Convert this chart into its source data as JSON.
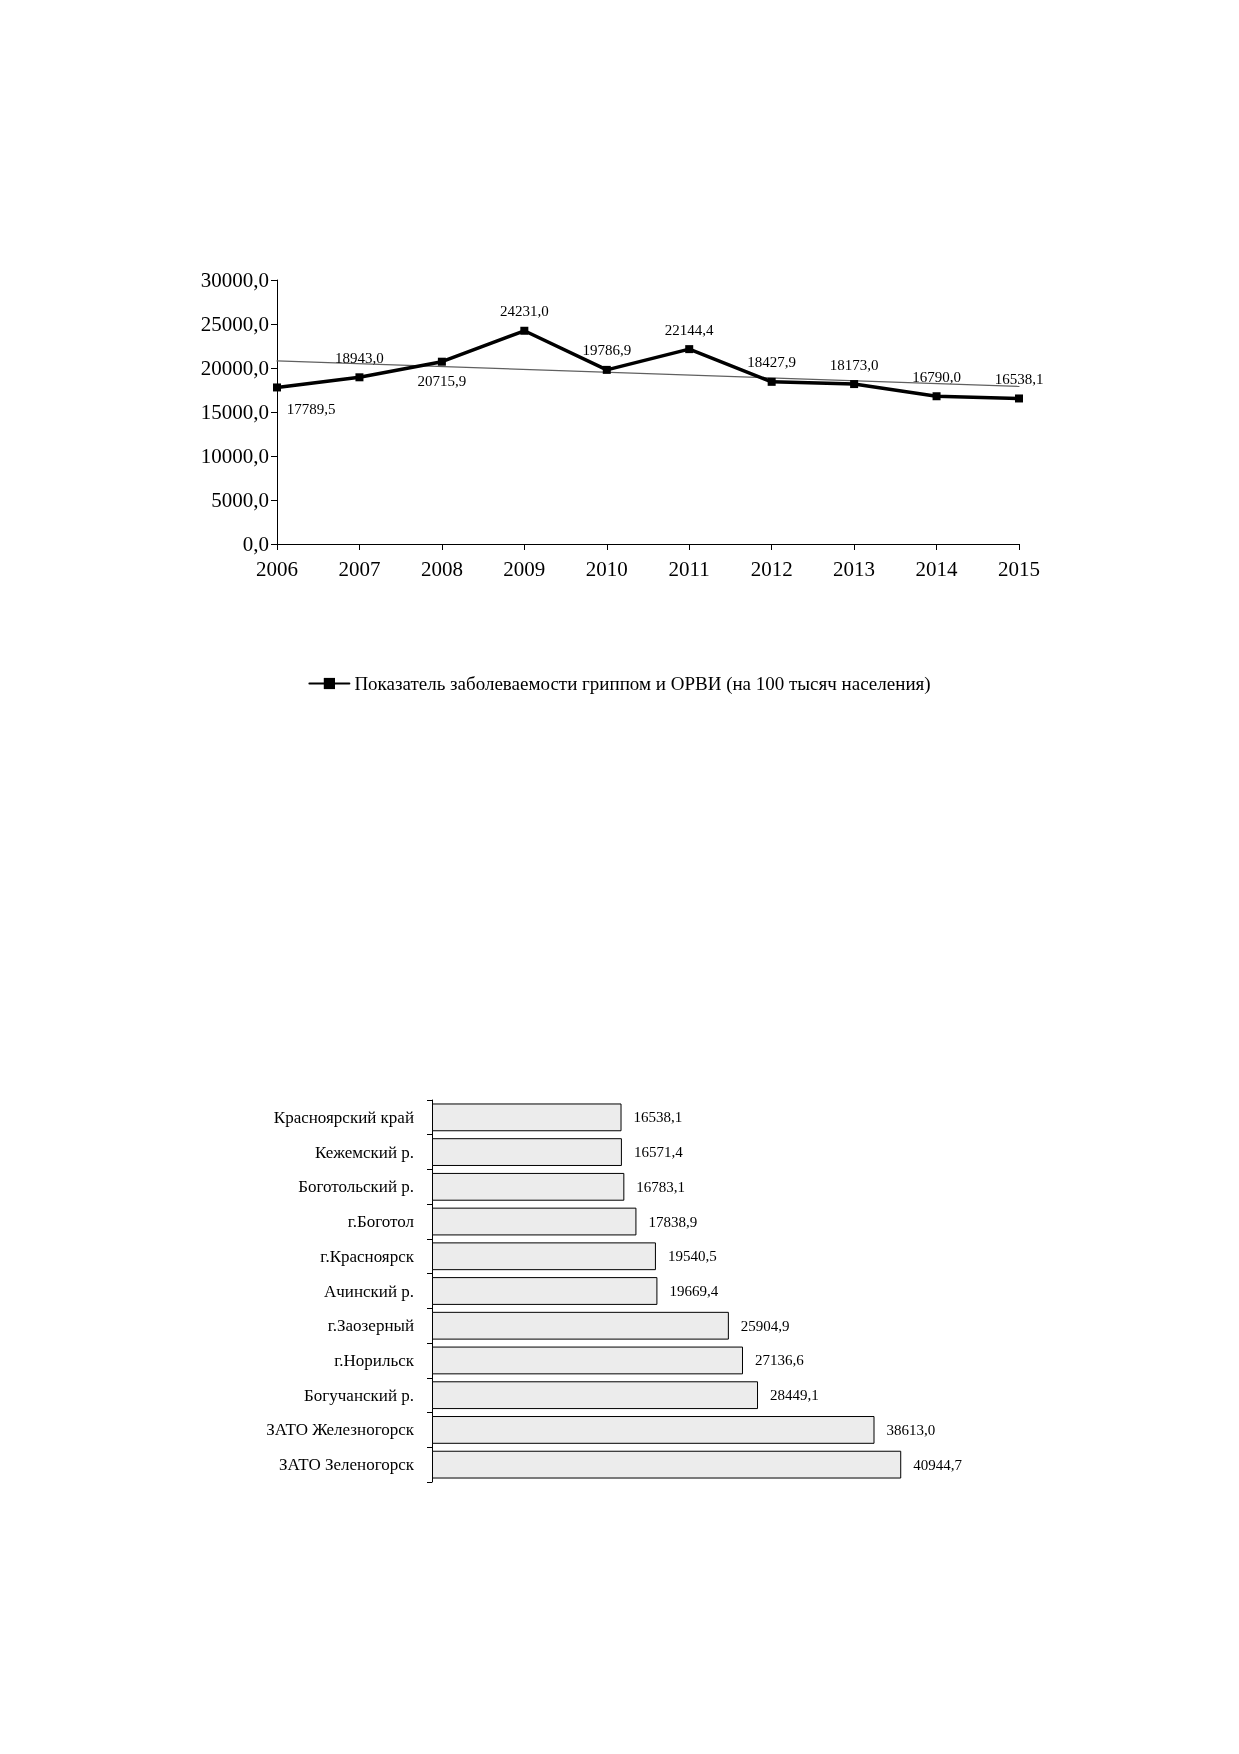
{
  "chart_data": [
    {
      "type": "line",
      "x": [
        2006,
        2007,
        2008,
        2009,
        2010,
        2011,
        2012,
        2013,
        2014,
        2015
      ],
      "xlim": [
        2006,
        2015
      ],
      "xticks": [
        2006,
        2007,
        2008,
        2009,
        2010,
        2011,
        2012,
        2013,
        2014,
        2015
      ],
      "ylim": [
        0,
        30000
      ],
      "yticks": [
        {
          "value": 0,
          "label": "0,0"
        },
        {
          "value": 5000,
          "label": "5000,0"
        },
        {
          "value": 10000,
          "label": "10000,0"
        },
        {
          "value": 15000,
          "label": "15000,0"
        },
        {
          "value": 20000,
          "label": "20000,0"
        },
        {
          "value": 25000,
          "label": "25000,0"
        },
        {
          "value": 30000,
          "label": "30000,0"
        }
      ],
      "legend": "bottom",
      "series": [
        {
          "name": "Показатель заболеваемости гриппом и ОРВИ (на 100 тысяч населения)",
          "color": "#000000",
          "marker": "square",
          "line_style": "solid",
          "values": [
            17789.5,
            18943.0,
            20715.9,
            24231.0,
            19786.9,
            22144.4,
            18427.9,
            18173.0,
            16790.0,
            16538.1
          ],
          "value_labels": [
            "17789,5",
            "18943,0",
            "20715,9",
            "24231,0",
            "19786,9",
            "22144,4",
            "18427,9",
            "18173,0",
            "16790,0",
            "16538,1"
          ]
        },
        {
          "type": "line",
          "color": "#606060",
          "marker": "none",
          "line_style": "solid",
          "x": [
            2006,
            2015
          ],
          "values": [
            20800,
            17900
          ]
        }
      ]
    },
    {
      "type": "bar",
      "orientation": "horizontal",
      "categories": [
        "Красноярский край",
        "Кежемский р.",
        "Боготольский р.",
        "г.Боготол",
        "г.Красноярск",
        "Ачинский р.",
        "г.Заозерный",
        "г.Норильск",
        "Богучанский р.",
        "ЗАТО Железногорск",
        "ЗАТО Зеленогорск"
      ],
      "color": "#ececec",
      "values": [
        16538.1,
        16571.4,
        16783.1,
        17838.9,
        19540.5,
        19669.4,
        25904.9,
        27136.6,
        28449.1,
        38613.0,
        40944.7
      ],
      "value_labels": [
        "16538,1",
        "16571,4",
        "16783,1",
        "17838,9",
        "19540,5",
        "19669,4",
        "25904,9",
        "27136,6",
        "28449,1",
        "38613,0",
        "40944,7"
      ]
    }
  ]
}
